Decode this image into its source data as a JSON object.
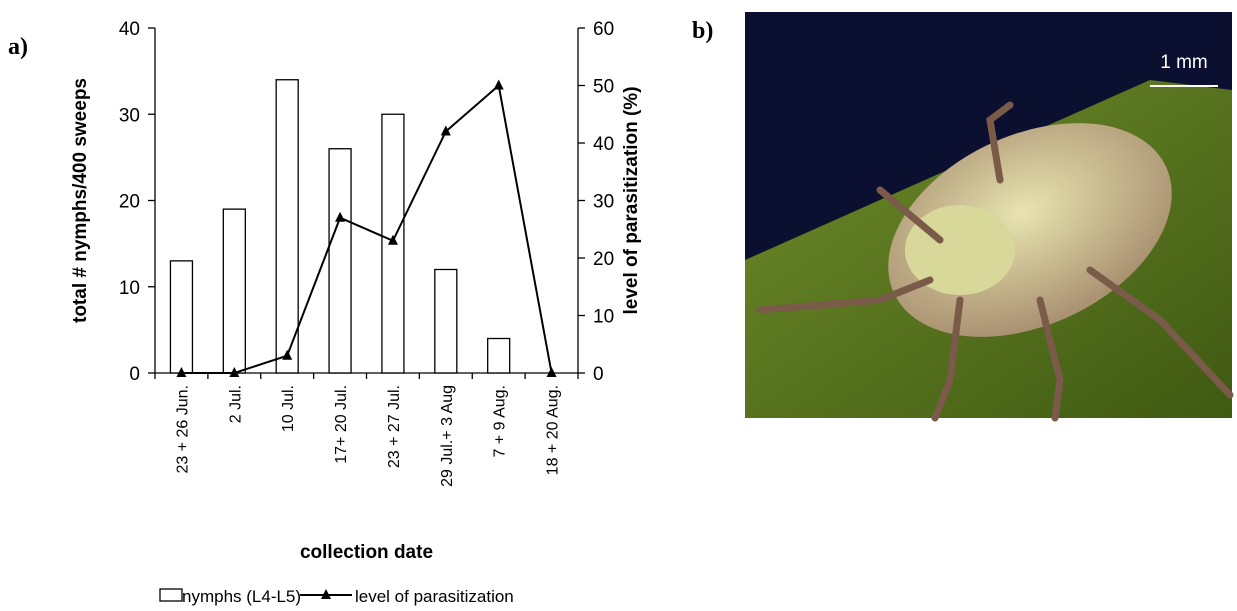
{
  "panel_labels": [
    "a)",
    "b)"
  ],
  "photo": {
    "scale_label": "1 mm"
  },
  "chart_data": {
    "type": "bar",
    "xlabel": "collection date",
    "ylabel": "total # nymphs/400 sweeps",
    "y2label": "level of parasitization (%)",
    "categories": [
      "23 + 26 Jun.",
      "2 Jul.",
      "10 Jul.",
      "17+ 20 Jul.",
      "23 + 27 Jul.",
      "29 Jul.+ 3 Aug",
      "7 + 9 Aug.",
      "18 + 20 Aug."
    ],
    "series": [
      {
        "name": "nymphs (L4-L5)",
        "type": "bar",
        "color": "#ffffff",
        "values": [
          13,
          19,
          34,
          26,
          30,
          12,
          4,
          0
        ]
      },
      {
        "name": "level of parasitization",
        "type": "line",
        "axis": "y2",
        "color": "#000000",
        "values": [
          0,
          0,
          3,
          27,
          23,
          42,
          50,
          0
        ]
      }
    ],
    "ylim": [
      0,
      40
    ],
    "yticks": [
      0,
      10,
      20,
      30,
      40
    ],
    "y2lim": [
      0,
      60
    ],
    "y2ticks": [
      0,
      10,
      20,
      30,
      40,
      50,
      60
    ],
    "legend": "bottom"
  }
}
